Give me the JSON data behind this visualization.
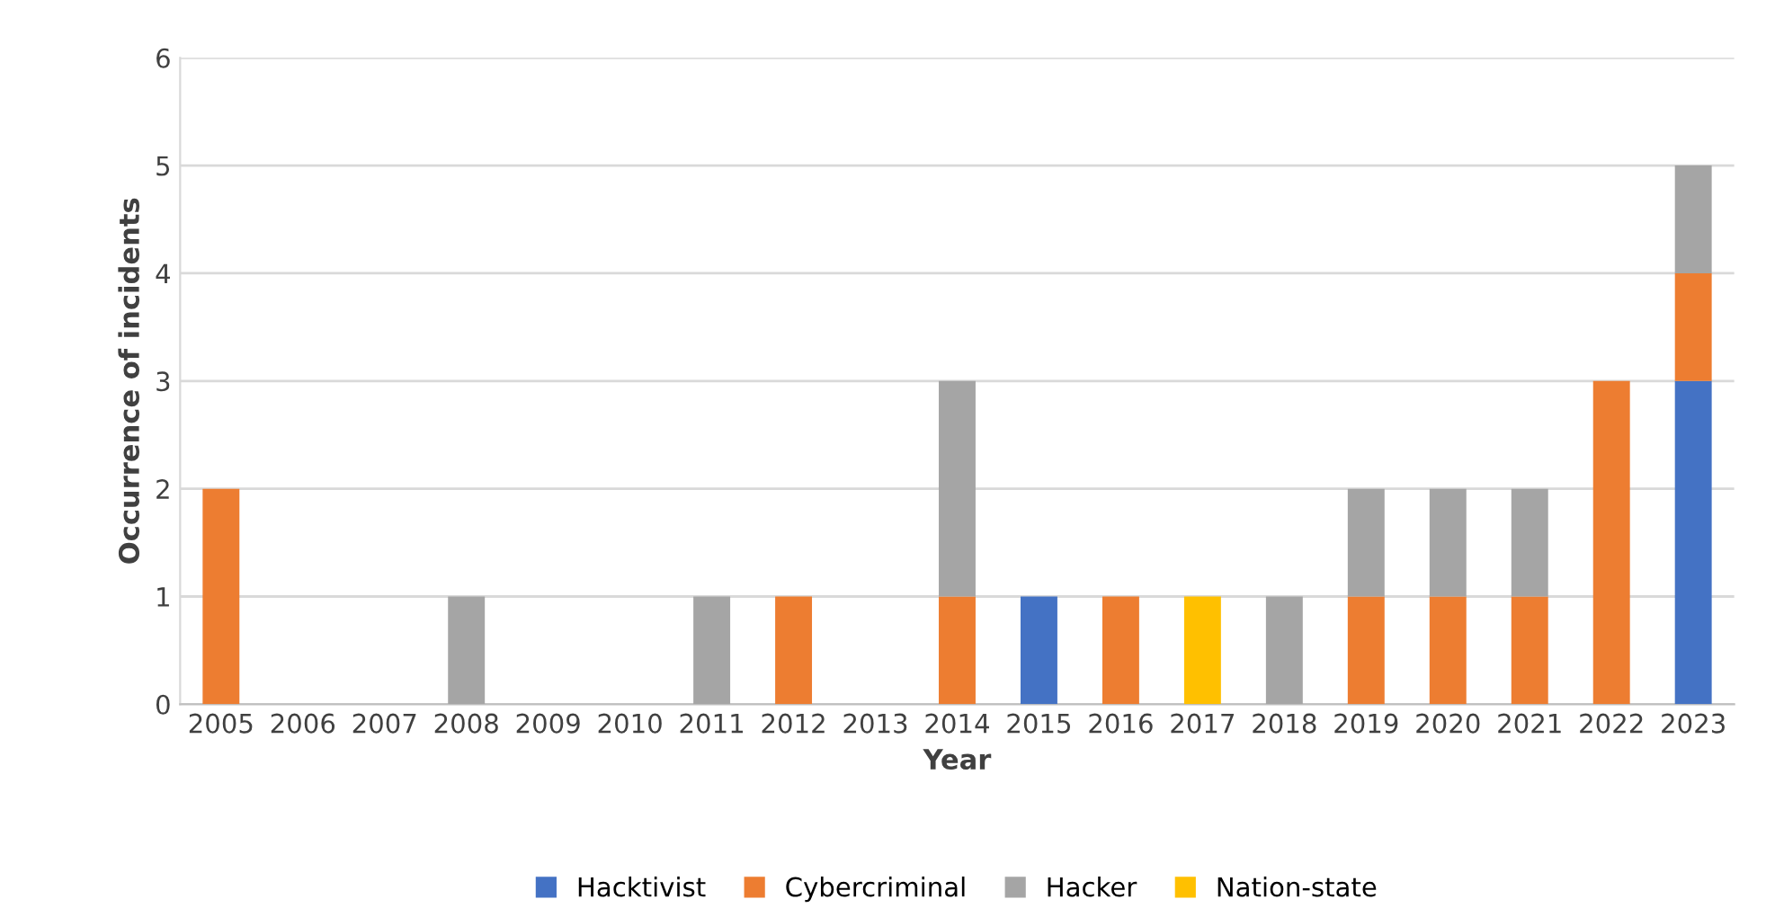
{
  "chart_data": {
    "type": "bar",
    "stacked": true,
    "xlabel": "Year",
    "ylabel": "Occurrence of incidents",
    "categories": [
      "2005",
      "2006",
      "2007",
      "2008",
      "2009",
      "2010",
      "2011",
      "2012",
      "2013",
      "2014",
      "2015",
      "2016",
      "2017",
      "2018",
      "2019",
      "2020",
      "2021",
      "2022",
      "2023"
    ],
    "series": [
      {
        "name": "Hacktivist",
        "color": "#4472c4",
        "values": [
          null,
          null,
          null,
          null,
          null,
          null,
          null,
          null,
          null,
          null,
          1,
          null,
          null,
          null,
          null,
          null,
          null,
          null,
          3
        ]
      },
      {
        "name": "Cybercriminal",
        "color": "#ed7d31",
        "values": [
          2,
          null,
          null,
          null,
          null,
          null,
          null,
          1,
          null,
          1,
          null,
          1,
          null,
          null,
          1,
          1,
          1,
          3,
          1
        ]
      },
      {
        "name": "Hacker",
        "color": "#a5a5a5",
        "values": [
          null,
          null,
          null,
          1,
          null,
          null,
          1,
          null,
          null,
          2,
          null,
          null,
          null,
          1,
          1,
          1,
          1,
          null,
          1
        ]
      },
      {
        "name": "Nation-state",
        "color": "#ffc000",
        "values": [
          null,
          null,
          null,
          null,
          null,
          null,
          null,
          null,
          null,
          null,
          null,
          null,
          1,
          null,
          null,
          null,
          null,
          null,
          null
        ]
      }
    ],
    "ylim": [
      0,
      6
    ],
    "yticks": [
      0,
      1,
      2,
      3,
      4,
      5,
      6
    ],
    "grid": "y",
    "legend": "bottom"
  }
}
